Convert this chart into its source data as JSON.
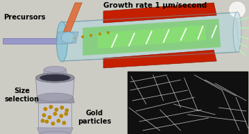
{
  "bg_color": "#ccccc4",
  "text_precursors": "Precursors",
  "text_size_selection": "Size\nselection",
  "text_gold_particles": "Gold\nparticles",
  "text_growth_rate": "Growth rate 1 μm/second",
  "reactor_red": "#c42000",
  "gold_color": "#b88800",
  "sem_bg": "#101010",
  "sem_wire_color": "#cccccc",
  "tube_fill": "#b0d8e0",
  "green_glow": "#55cc33",
  "pipe_orange": "#e07040",
  "pipe_blue": "#9090cc",
  "dma_body": "#b0b0c0",
  "dma_dark": "#303040",
  "wire_white": "#ffffff",
  "wire_green": "#aaffaa"
}
